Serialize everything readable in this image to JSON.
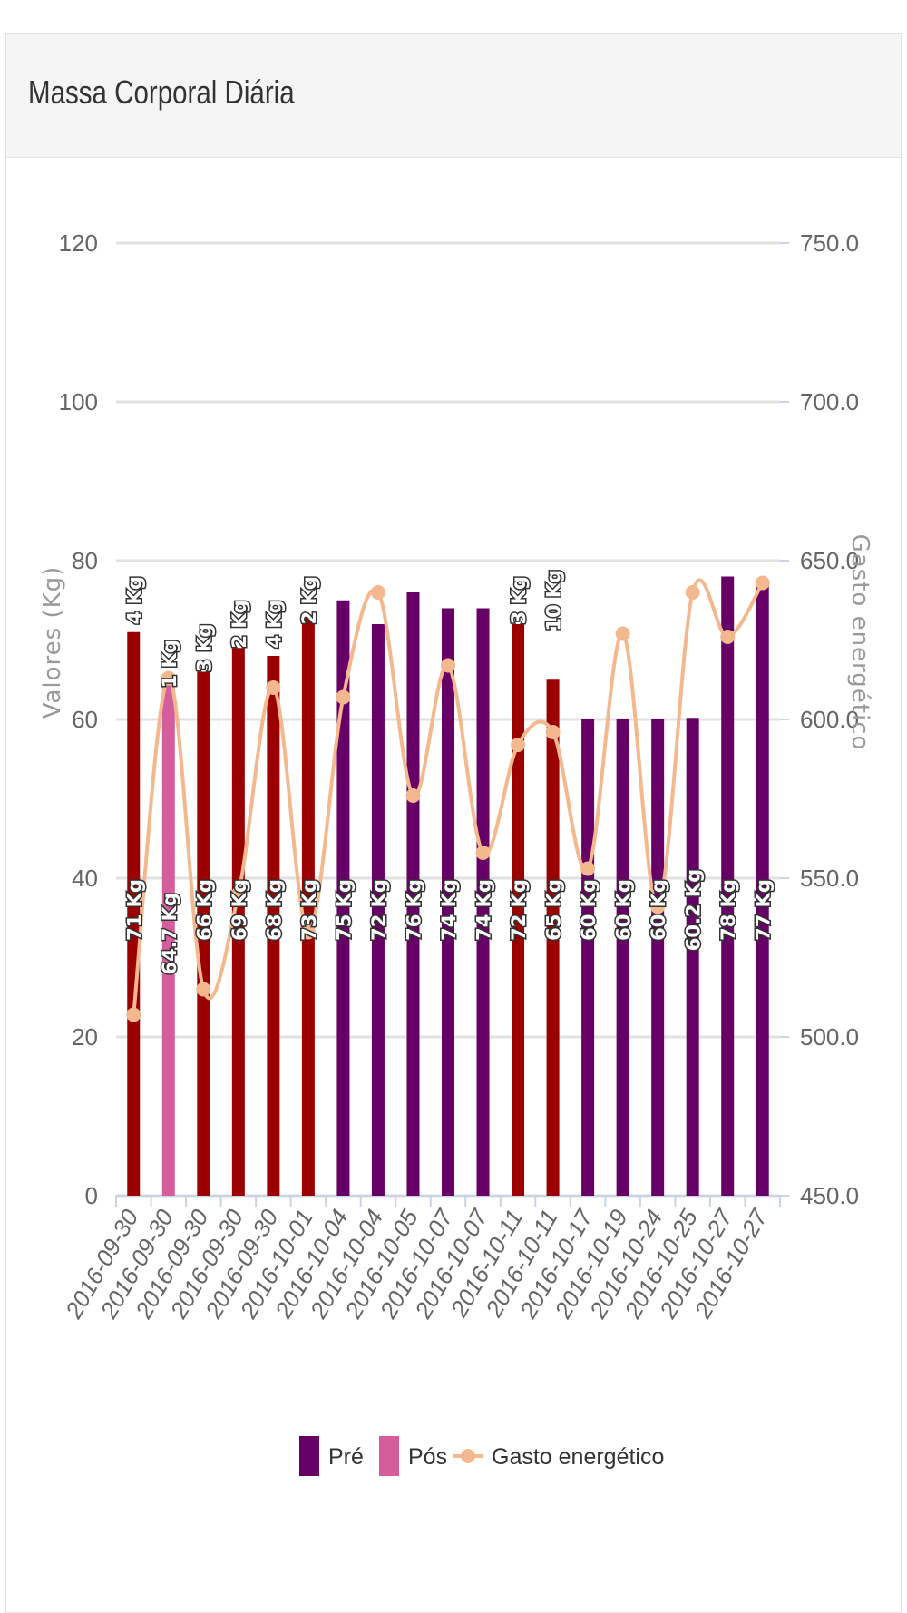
{
  "card": {
    "title": "Massa Corporal Diária"
  },
  "colors": {
    "pre": "#670066",
    "pos": "#d45e9c",
    "highlight": "#9a0000",
    "line": "#f4b88f",
    "grid": "#e2e2e2"
  },
  "chart_data": {
    "type": "bar",
    "categories": [
      "2016-09-30",
      "2016-09-30",
      "2016-09-30",
      "2016-09-30",
      "2016-09-30",
      "2016-10-01",
      "2016-10-04",
      "2016-10-04",
      "2016-10-05",
      "2016-10-07",
      "2016-10-07",
      "2016-10-11",
      "2016-10-11",
      "2016-10-17",
      "2016-10-19",
      "2016-10-24",
      "2016-10-25",
      "2016-10-27",
      "2016-10-27"
    ],
    "series": [
      {
        "name": "Pré",
        "type": "bar",
        "values": [
          71,
          null,
          66,
          69,
          68,
          73,
          75,
          72,
          76,
          74,
          74,
          72,
          65,
          60,
          60,
          60,
          60.2,
          78,
          77
        ],
        "labels": [
          "71 Kg",
          null,
          "66 Kg",
          "69 Kg",
          "68 Kg",
          "73 Kg",
          "75 Kg",
          "72 Kg",
          "76 Kg",
          "74 Kg",
          "74 Kg",
          "72 Kg",
          "65 Kg",
          "60 Kg",
          "60 Kg",
          "60 Kg",
          "60.2 Kg",
          "78 Kg",
          "77 Kg"
        ],
        "highlighted": [
          true,
          false,
          true,
          true,
          true,
          true,
          false,
          false,
          false,
          false,
          false,
          true,
          true,
          false,
          false,
          false,
          false,
          false,
          false
        ]
      },
      {
        "name": "Pós",
        "type": "bar",
        "values": [
          null,
          64.7,
          null,
          null,
          null,
          null,
          null,
          null,
          null,
          null,
          null,
          null,
          null,
          null,
          null,
          null,
          null,
          null,
          null
        ],
        "labels": [
          null,
          "64.7 Kg",
          null,
          null,
          null,
          null,
          null,
          null,
          null,
          null,
          null,
          null,
          null,
          null,
          null,
          null,
          null,
          null,
          null
        ]
      },
      {
        "name": "Gasto energético",
        "type": "line",
        "axis": "right",
        "values": [
          507,
          613,
          515,
          545,
          610,
          533,
          607,
          640,
          576,
          617,
          558,
          592,
          596,
          553,
          627,
          541,
          640,
          626,
          643
        ]
      }
    ],
    "extra_labels": [
      {
        "index": 0,
        "value": 75,
        "text": "4 Kg"
      },
      {
        "index": 1,
        "value": 67,
        "text": "1 Kg"
      },
      {
        "index": 2,
        "value": 69,
        "text": "3 Kg"
      },
      {
        "index": 3,
        "value": 72,
        "text": "2 Kg"
      },
      {
        "index": 4,
        "value": 72,
        "text": "4 Kg"
      },
      {
        "index": 5,
        "value": 75,
        "text": "2 Kg"
      },
      {
        "index": 11,
        "value": 75,
        "text": "3 Kg"
      },
      {
        "index": 12,
        "value": 75,
        "text": "10 Kg"
      }
    ],
    "y_left": {
      "label": "Valores (Kg)",
      "min": 0,
      "max": 120,
      "ticks": [
        "0",
        "20",
        "40",
        "60",
        "80",
        "100",
        "120"
      ]
    },
    "y_right": {
      "label": "Gasto energético",
      "min": 450,
      "max": 750,
      "ticks": [
        "450.0",
        "500.0",
        "550.0",
        "600.0",
        "650.0",
        "700.0",
        "750.0"
      ]
    },
    "grid": true,
    "legend": {
      "position": "bottom",
      "items": [
        "Pré",
        "Pós",
        "Gasto energético"
      ]
    }
  }
}
